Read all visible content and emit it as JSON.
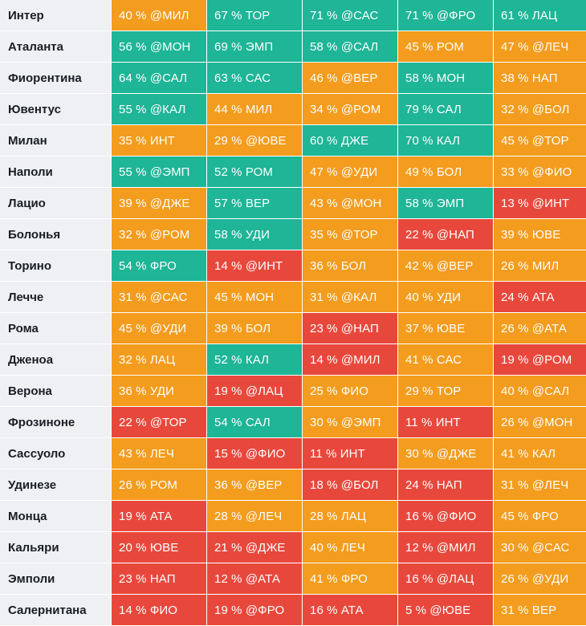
{
  "colors": {
    "green": "#1fb597",
    "orange": "#f39c1e",
    "red": "#e8483c",
    "team_bg": "#eef0f3"
  },
  "rows": [
    {
      "team": "Интер",
      "cells": [
        {
          "text": "40 % @МИЛ",
          "tone": "orange"
        },
        {
          "text": "67 % ТОР",
          "tone": "green"
        },
        {
          "text": "71 % @САС",
          "tone": "green"
        },
        {
          "text": "71 % @ФРО",
          "tone": "green"
        },
        {
          "text": "61 % ЛАЦ",
          "tone": "green"
        }
      ]
    },
    {
      "team": "Аталанта",
      "cells": [
        {
          "text": "56 % @МОН",
          "tone": "green"
        },
        {
          "text": "69 % ЭМП",
          "tone": "green"
        },
        {
          "text": "58 % @САЛ",
          "tone": "green"
        },
        {
          "text": "45 % РОМ",
          "tone": "orange"
        },
        {
          "text": "47 % @ЛЕЧ",
          "tone": "orange"
        }
      ]
    },
    {
      "team": "Фиорентина",
      "cells": [
        {
          "text": "64 % @САЛ",
          "tone": "green"
        },
        {
          "text": "63 % САС",
          "tone": "green"
        },
        {
          "text": "46 % @ВЕР",
          "tone": "orange"
        },
        {
          "text": "58 % МОН",
          "tone": "green"
        },
        {
          "text": "38 % НАП",
          "tone": "orange"
        }
      ]
    },
    {
      "team": "Ювентус",
      "cells": [
        {
          "text": "55 % @КАЛ",
          "tone": "green"
        },
        {
          "text": "44 % МИЛ",
          "tone": "orange"
        },
        {
          "text": "34 % @РОМ",
          "tone": "orange"
        },
        {
          "text": "79 % САЛ",
          "tone": "green"
        },
        {
          "text": "32 % @БОЛ",
          "tone": "orange"
        }
      ]
    },
    {
      "team": "Милан",
      "cells": [
        {
          "text": "35 % ИНТ",
          "tone": "orange"
        },
        {
          "text": "29 % @ЮВЕ",
          "tone": "orange"
        },
        {
          "text": "60 % ДЖЕ",
          "tone": "green"
        },
        {
          "text": "70 % КАЛ",
          "tone": "green"
        },
        {
          "text": "45 % @ТОР",
          "tone": "orange"
        }
      ]
    },
    {
      "team": "Наполи",
      "cells": [
        {
          "text": "55 % @ЭМП",
          "tone": "green"
        },
        {
          "text": "52 % РОМ",
          "tone": "green"
        },
        {
          "text": "47 % @УДИ",
          "tone": "orange"
        },
        {
          "text": "49 % БОЛ",
          "tone": "orange"
        },
        {
          "text": "33 % @ФИО",
          "tone": "orange"
        }
      ]
    },
    {
      "team": "Лацио",
      "cells": [
        {
          "text": "39 % @ДЖЕ",
          "tone": "orange"
        },
        {
          "text": "57 % ВЕР",
          "tone": "green"
        },
        {
          "text": "43 % @МОН",
          "tone": "orange"
        },
        {
          "text": "58 % ЭМП",
          "tone": "green"
        },
        {
          "text": "13 % @ИНТ",
          "tone": "red"
        }
      ]
    },
    {
      "team": "Болонья",
      "cells": [
        {
          "text": "32 % @РОМ",
          "tone": "orange"
        },
        {
          "text": "58 % УДИ",
          "tone": "green"
        },
        {
          "text": "35 % @ТОР",
          "tone": "orange"
        },
        {
          "text": "22 % @НАП",
          "tone": "red"
        },
        {
          "text": "39 % ЮВЕ",
          "tone": "orange"
        }
      ]
    },
    {
      "team": "Торино",
      "cells": [
        {
          "text": "54 % ФРО",
          "tone": "green"
        },
        {
          "text": "14 % @ИНТ",
          "tone": "red"
        },
        {
          "text": "36 % БОЛ",
          "tone": "orange"
        },
        {
          "text": "42 % @ВЕР",
          "tone": "orange"
        },
        {
          "text": "26 % МИЛ",
          "tone": "orange"
        }
      ]
    },
    {
      "team": "Лечче",
      "cells": [
        {
          "text": "31 % @САС",
          "tone": "orange"
        },
        {
          "text": "45 % МОН",
          "tone": "orange"
        },
        {
          "text": "31 % @КАЛ",
          "tone": "orange"
        },
        {
          "text": "40 % УДИ",
          "tone": "orange"
        },
        {
          "text": "24 % АТА",
          "tone": "red"
        }
      ]
    },
    {
      "team": "Рома",
      "cells": [
        {
          "text": "45 % @УДИ",
          "tone": "orange"
        },
        {
          "text": "39 % БОЛ",
          "tone": "orange"
        },
        {
          "text": "23 % @НАП",
          "tone": "red"
        },
        {
          "text": "37 % ЮВЕ",
          "tone": "orange"
        },
        {
          "text": "26 % @АТА",
          "tone": "orange"
        }
      ]
    },
    {
      "team": "Дженоа",
      "cells": [
        {
          "text": "32 % ЛАЦ",
          "tone": "orange"
        },
        {
          "text": "52 % КАЛ",
          "tone": "green"
        },
        {
          "text": "14 % @МИЛ",
          "tone": "red"
        },
        {
          "text": "41 % САС",
          "tone": "orange"
        },
        {
          "text": "19 % @РОМ",
          "tone": "red"
        }
      ]
    },
    {
      "team": "Верона",
      "cells": [
        {
          "text": "36 % УДИ",
          "tone": "orange"
        },
        {
          "text": "19 % @ЛАЦ",
          "tone": "red"
        },
        {
          "text": "25 % ФИО",
          "tone": "orange"
        },
        {
          "text": "29 % ТОР",
          "tone": "orange"
        },
        {
          "text": "40 % @САЛ",
          "tone": "orange"
        }
      ]
    },
    {
      "team": "Фрозиноне",
      "cells": [
        {
          "text": "22 % @ТОР",
          "tone": "red"
        },
        {
          "text": "54 % САЛ",
          "tone": "green"
        },
        {
          "text": "30 % @ЭМП",
          "tone": "orange"
        },
        {
          "text": "11 % ИНТ",
          "tone": "red"
        },
        {
          "text": "26 % @МОН",
          "tone": "orange"
        }
      ]
    },
    {
      "team": "Сассуоло",
      "cells": [
        {
          "text": "43 % ЛЕЧ",
          "tone": "orange"
        },
        {
          "text": "15 % @ФИО",
          "tone": "red"
        },
        {
          "text": "11 % ИНТ",
          "tone": "red"
        },
        {
          "text": "30 % @ДЖЕ",
          "tone": "orange"
        },
        {
          "text": "41 % КАЛ",
          "tone": "orange"
        }
      ]
    },
    {
      "team": "Удинезе",
      "cells": [
        {
          "text": "26 % РОМ",
          "tone": "orange"
        },
        {
          "text": "36 % @ВЕР",
          "tone": "orange"
        },
        {
          "text": "18 % @БОЛ",
          "tone": "red"
        },
        {
          "text": "24 % НАП",
          "tone": "red"
        },
        {
          "text": "31 % @ЛЕЧ",
          "tone": "orange"
        }
      ]
    },
    {
      "team": "Монца",
      "cells": [
        {
          "text": "19 % АТА",
          "tone": "red"
        },
        {
          "text": "28 % @ЛЕЧ",
          "tone": "orange"
        },
        {
          "text": "28 % ЛАЦ",
          "tone": "orange"
        },
        {
          "text": "16 % @ФИО",
          "tone": "red"
        },
        {
          "text": "45 % ФРО",
          "tone": "orange"
        }
      ]
    },
    {
      "team": "Кальяри",
      "cells": [
        {
          "text": "20 % ЮВЕ",
          "tone": "red"
        },
        {
          "text": "21 % @ДЖЕ",
          "tone": "red"
        },
        {
          "text": "40 % ЛЕЧ",
          "tone": "orange"
        },
        {
          "text": "12 % @МИЛ",
          "tone": "red"
        },
        {
          "text": "30 % @САС",
          "tone": "orange"
        }
      ]
    },
    {
      "team": "Эмполи",
      "cells": [
        {
          "text": "23 % НАП",
          "tone": "red"
        },
        {
          "text": "12 % @АТА",
          "tone": "red"
        },
        {
          "text": "41 % ФРО",
          "tone": "orange"
        },
        {
          "text": "16 % @ЛАЦ",
          "tone": "red"
        },
        {
          "text": "26 % @УДИ",
          "tone": "orange"
        }
      ]
    },
    {
      "team": "Салернитана",
      "cells": [
        {
          "text": "14 % ФИО",
          "tone": "red"
        },
        {
          "text": "19 % @ФРО",
          "tone": "red"
        },
        {
          "text": "16 % АТА",
          "tone": "red"
        },
        {
          "text": "5 % @ЮВЕ",
          "tone": "red"
        },
        {
          "text": "31 % ВЕР",
          "tone": "orange"
        }
      ]
    }
  ]
}
